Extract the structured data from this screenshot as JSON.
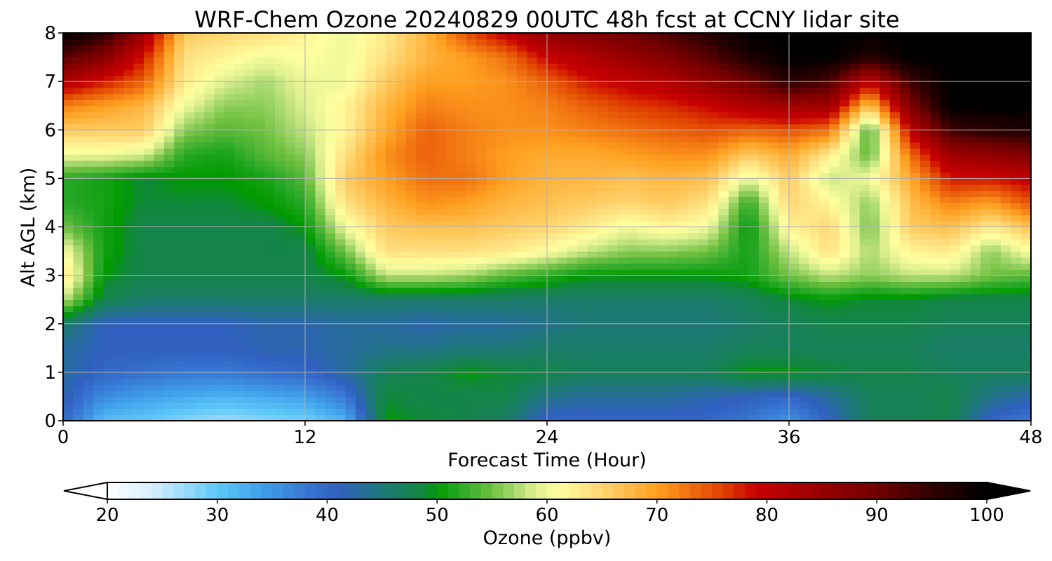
{
  "chart_data": {
    "type": "heatmap",
    "title": "WRF-Chem Ozone  20240829 00UTC 48h fcst at CCNY lidar site",
    "xlabel": "Forecast Time (Hour)",
    "ylabel": "Alt AGL (km)",
    "xlim": [
      0,
      48
    ],
    "ylim": [
      0,
      8
    ],
    "xticks": [
      "0",
      "12",
      "24",
      "36",
      "48"
    ],
    "yticks": [
      "0",
      "1",
      "2",
      "3",
      "4",
      "5",
      "6",
      "7",
      "8"
    ],
    "grid": true,
    "x": [
      0,
      2,
      4,
      6,
      8,
      10,
      12,
      14,
      16,
      18,
      20,
      22,
      24,
      26,
      28,
      30,
      32,
      34,
      36,
      38,
      40,
      42,
      44,
      46,
      48
    ],
    "y": [
      0,
      0.5,
      1,
      1.5,
      2,
      2.5,
      3,
      3.5,
      4,
      4.5,
      5,
      5.5,
      6,
      6.5,
      7,
      7.5,
      8
    ],
    "z": [
      [
        40,
        31,
        30,
        28,
        27,
        28,
        29,
        32,
        50,
        49,
        48,
        46,
        40,
        40,
        40,
        40,
        40,
        38,
        35,
        41,
        47,
        47,
        48,
        40,
        38
      ],
      [
        42,
        36,
        34,
        33,
        32,
        33,
        34,
        38,
        49,
        48,
        48,
        48,
        44,
        43,
        43,
        43,
        42,
        41,
        40,
        43,
        47,
        47,
        48,
        44,
        42
      ],
      [
        43,
        40,
        39,
        38,
        38,
        39,
        40,
        43,
        47,
        48,
        50,
        49,
        48,
        47,
        47,
        47,
        47,
        50,
        50,
        49,
        48,
        48,
        47,
        47,
        47
      ],
      [
        43,
        41,
        41,
        41,
        41,
        42,
        42,
        43,
        44,
        44,
        45,
        45,
        46,
        46,
        46,
        46,
        46,
        47,
        47,
        47,
        47,
        47,
        46,
        46,
        46
      ],
      [
        46,
        41,
        41,
        41,
        41,
        42,
        42,
        43,
        43,
        42,
        43,
        43,
        44,
        45,
        45,
        45,
        45,
        46,
        47,
        48,
        48,
        48,
        47,
        47,
        47
      ],
      [
        58,
        48,
        46,
        46,
        46,
        46,
        46,
        46,
        46,
        46,
        46,
        46,
        46,
        46,
        46,
        46,
        46,
        47,
        49,
        50,
        49,
        49,
        48,
        48,
        48
      ],
      [
        64,
        50,
        48,
        48,
        48,
        48,
        48,
        50,
        58,
        58,
        57,
        54,
        52,
        50,
        50,
        50,
        50,
        51,
        55,
        58,
        56,
        58,
        58,
        55,
        54
      ],
      [
        61,
        51,
        48,
        48,
        48,
        48,
        48,
        55,
        64,
        64,
        64,
        63,
        61,
        58,
        56,
        56,
        55,
        51,
        58,
        64,
        57,
        62,
        63,
        56,
        61
      ],
      [
        55,
        51,
        48,
        48,
        48,
        48,
        50,
        60,
        66,
        67,
        67,
        66,
        65,
        63,
        60,
        62,
        60,
        50,
        62,
        65,
        55,
        66,
        67,
        63,
        67
      ],
      [
        52,
        51,
        49,
        49,
        49,
        50,
        52,
        64,
        68,
        71,
        70,
        68,
        67,
        66,
        65,
        66,
        64,
        52,
        65,
        62,
        56,
        67,
        72,
        70,
        75
      ],
      [
        52,
        51,
        49,
        50,
        50,
        51,
        54,
        66,
        70,
        73,
        73,
        70,
        68,
        68,
        67,
        68,
        67,
        59,
        66,
        58,
        60,
        69,
        78,
        78,
        80
      ],
      [
        60,
        60,
        59,
        52,
        51,
        54,
        56,
        64,
        71,
        74,
        72,
        70,
        69,
        69,
        70,
        71,
        71,
        66,
        69,
        63,
        54,
        73,
        84,
        86,
        88
      ],
      [
        66,
        66,
        66,
        56,
        54,
        55,
        58,
        62,
        69,
        74,
        72,
        71,
        71,
        72,
        73,
        74,
        75,
        74,
        75,
        73,
        53,
        80,
        94,
        96,
        97
      ],
      [
        72,
        70,
        68,
        60,
        56,
        56,
        59,
        62,
        68,
        72,
        71,
        71,
        72,
        74,
        76,
        77,
        79,
        82,
        84,
        84,
        66,
        88,
        100,
        100,
        100
      ],
      [
        82,
        78,
        74,
        63,
        59,
        57,
        60,
        60,
        66,
        70,
        70,
        71,
        74,
        78,
        80,
        82,
        86,
        90,
        96,
        93,
        80,
        94,
        100,
        100,
        100
      ],
      [
        92,
        87,
        78,
        64,
        62,
        60,
        61,
        60,
        64,
        68,
        70,
        73,
        79,
        82,
        85,
        88,
        92,
        97,
        100,
        100,
        96,
        100,
        100,
        100,
        100
      ],
      [
        100,
        96,
        84,
        66,
        65,
        64,
        62,
        60,
        63,
        68,
        75,
        80,
        86,
        88,
        90,
        93,
        96,
        100,
        100,
        100,
        100,
        100,
        100,
        100,
        100
      ]
    ],
    "colorbar": {
      "label": "Ozone  (ppbv)",
      "min": 20,
      "max": 100,
      "ticks": [
        "20",
        "30",
        "40",
        "50",
        "60",
        "70",
        "80",
        "90",
        "100"
      ],
      "extend": "both",
      "stops": [
        [
          20,
          "#ffffff"
        ],
        [
          24,
          "#d8efff"
        ],
        [
          30,
          "#5ec8f8"
        ],
        [
          34,
          "#3fa0ea"
        ],
        [
          38,
          "#3878d4"
        ],
        [
          41,
          "#3060c0"
        ],
        [
          45,
          "#1e7878"
        ],
        [
          49,
          "#10883a"
        ],
        [
          50,
          "#009a00"
        ],
        [
          52,
          "#28a828"
        ],
        [
          55,
          "#70c040"
        ],
        [
          57,
          "#a8d870"
        ],
        [
          59,
          "#e0f090"
        ],
        [
          61,
          "#ffffa0"
        ],
        [
          64,
          "#ffe080"
        ],
        [
          67,
          "#ffc050"
        ],
        [
          70,
          "#ffa020"
        ],
        [
          73,
          "#f07010"
        ],
        [
          76,
          "#e04000"
        ],
        [
          79,
          "#c80000"
        ],
        [
          84,
          "#a00000"
        ],
        [
          90,
          "#700000"
        ],
        [
          95,
          "#300000"
        ],
        [
          100,
          "#000000"
        ]
      ]
    }
  }
}
